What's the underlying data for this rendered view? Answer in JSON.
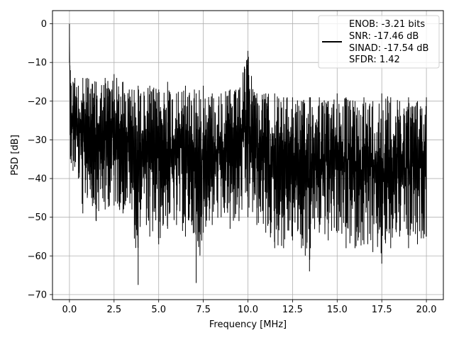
{
  "chart_data": {
    "type": "line",
    "title": "",
    "xlabel": "Frequency [MHz]",
    "ylabel": "PSD [dB]",
    "xlim": [
      -0.95,
      20.95
    ],
    "ylim": [
      -71.3,
      3.4
    ],
    "xticks": [
      0.0,
      2.5,
      5.0,
      7.5,
      10.0,
      12.5,
      15.0,
      17.5,
      20.0
    ],
    "xtick_labels": [
      "0.0",
      "2.5",
      "5.0",
      "7.5",
      "10.0",
      "12.5",
      "15.0",
      "17.5",
      "20.0"
    ],
    "yticks": [
      0,
      -10,
      -20,
      -30,
      -40,
      -50,
      -60,
      -70
    ],
    "ytick_labels": [
      "0",
      "−10",
      "−20",
      "−30",
      "−40",
      "−50",
      "−60",
      "−70"
    ],
    "grid": true,
    "legend_position": "top-right",
    "line_color": "#000000",
    "legend_lines": [
      "ENOB: -3.21 bits",
      "SNR: -17.46 dB",
      "SINAD: -17.54 dB",
      "SFDR: 1.42"
    ],
    "series": [
      {
        "x": [
          0.0,
          0.05,
          0.1,
          0.2,
          0.3,
          0.5,
          0.75,
          1.0,
          1.5,
          2.0,
          2.5,
          3.0,
          3.5,
          3.85,
          4.0,
          4.5,
          5.0,
          5.5,
          6.0,
          6.5,
          7.0,
          7.1,
          7.5,
          8.0,
          8.5,
          9.0,
          9.5,
          10.0,
          10.5,
          11.0,
          11.5,
          12.0,
          12.5,
          13.0,
          13.45,
          13.5,
          14.0,
          14.5,
          15.0,
          15.5,
          16.0,
          16.5,
          17.0,
          17.5,
          18.0,
          18.5,
          19.0,
          19.5,
          20.0
        ],
        "y_upper": [
          0,
          -12,
          -16,
          -15,
          -14,
          -16,
          -14,
          -14,
          -15,
          -14,
          -13,
          -15,
          -17,
          -16,
          -18,
          -16,
          -17,
          -15,
          -18,
          -16,
          -17,
          -18,
          -16,
          -18,
          -18,
          -17,
          -17,
          -7,
          -18,
          -18,
          -18,
          -19,
          -19,
          -20,
          -19,
          -19,
          -19,
          -20,
          -18,
          -19,
          -20,
          -19,
          -20,
          -18,
          -19,
          -20,
          -19,
          -20,
          -19
        ],
        "y_lower": [
          -10,
          -35,
          -36,
          -38,
          -37,
          -40,
          -49,
          -45,
          -51,
          -48,
          -47,
          -49,
          -48,
          -67.5,
          -48,
          -55,
          -57,
          -53,
          -52,
          -55,
          -54,
          -67,
          -54,
          -52,
          -50,
          -53,
          -51,
          -50,
          -52,
          -54,
          -58,
          -58,
          -56,
          -58,
          -64,
          -58,
          -54,
          -56,
          -54,
          -58,
          -58,
          -57,
          -59,
          -62,
          -58,
          -55,
          -58,
          -57,
          -55
        ]
      }
    ]
  }
}
